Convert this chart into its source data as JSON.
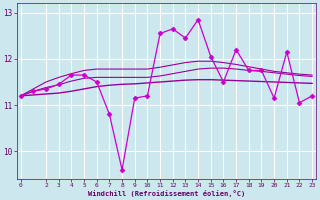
{
  "xlabel": "Windchill (Refroidissement éolien,°C)",
  "background_color": "#cce8ee",
  "grid_color": "#ffffff",
  "line_color_main": "#cc00cc",
  "line_color_smooth": "#990099",
  "xdata": [
    0,
    1,
    2,
    3,
    4,
    5,
    6,
    7,
    8,
    9,
    10,
    11,
    12,
    13,
    14,
    15,
    16,
    17,
    18,
    19,
    20,
    21,
    22,
    23
  ],
  "main_series": [
    11.2,
    11.3,
    11.35,
    11.45,
    11.65,
    11.65,
    11.5,
    10.8,
    9.6,
    11.15,
    11.2,
    12.55,
    12.65,
    12.45,
    12.85,
    12.05,
    11.5,
    12.2,
    11.75,
    11.75,
    11.15,
    12.15,
    11.05,
    11.2
  ],
  "trend1": [
    11.2,
    11.22,
    11.24,
    11.26,
    11.3,
    11.35,
    11.4,
    11.43,
    11.45,
    11.46,
    11.48,
    11.5,
    11.52,
    11.54,
    11.55,
    11.55,
    11.54,
    11.53,
    11.52,
    11.51,
    11.5,
    11.49,
    11.48,
    11.47
  ],
  "trend2": [
    11.2,
    11.3,
    11.38,
    11.44,
    11.52,
    11.58,
    11.6,
    11.6,
    11.6,
    11.6,
    11.6,
    11.63,
    11.68,
    11.73,
    11.78,
    11.8,
    11.8,
    11.78,
    11.75,
    11.73,
    11.7,
    11.67,
    11.64,
    11.62
  ],
  "trend3": [
    11.2,
    11.35,
    11.5,
    11.6,
    11.68,
    11.75,
    11.78,
    11.78,
    11.78,
    11.78,
    11.78,
    11.82,
    11.87,
    11.92,
    11.95,
    11.95,
    11.92,
    11.88,
    11.83,
    11.78,
    11.73,
    11.7,
    11.67,
    11.65
  ],
  "ylim": [
    9.4,
    13.2
  ],
  "yticks": [
    10,
    11,
    12,
    13
  ],
  "xticks": [
    0,
    2,
    3,
    4,
    5,
    6,
    7,
    8,
    9,
    10,
    11,
    12,
    13,
    14,
    15,
    16,
    17,
    18,
    19,
    20,
    21,
    22,
    23
  ]
}
